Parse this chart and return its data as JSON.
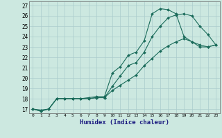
{
  "title": "",
  "xlabel": "Humidex (Indice chaleur)",
  "background_color": "#cce8e0",
  "grid_color": "#aacccc",
  "line_color": "#1a6b5a",
  "xlim": [
    -0.5,
    23.5
  ],
  "ylim": [
    16.6,
    27.4
  ],
  "xticks": [
    0,
    1,
    2,
    3,
    4,
    5,
    6,
    7,
    8,
    9,
    10,
    11,
    12,
    13,
    14,
    15,
    16,
    17,
    18,
    19,
    20,
    21,
    22,
    23
  ],
  "yticks": [
    17,
    18,
    19,
    20,
    21,
    22,
    23,
    24,
    25,
    26,
    27
  ],
  "series": [
    {
      "x": [
        0,
        1,
        2,
        3,
        4,
        5,
        6,
        7,
        8,
        9,
        10,
        11,
        12,
        13,
        14,
        15,
        16,
        17,
        18,
        19,
        20,
        21,
        22,
        23
      ],
      "y": [
        17,
        16.8,
        17,
        18,
        18,
        18,
        18,
        18.1,
        18.2,
        18.2,
        20.5,
        21.1,
        22.2,
        22.5,
        23.6,
        26.2,
        26.7,
        26.6,
        26.2,
        24.0,
        23.5,
        23.0,
        23.0,
        23.2
      ]
    },
    {
      "x": [
        0,
        1,
        2,
        3,
        4,
        5,
        6,
        7,
        8,
        9,
        10,
        11,
        12,
        13,
        14,
        15,
        16,
        17,
        18,
        19,
        20,
        21,
        22,
        23
      ],
      "y": [
        17,
        16.8,
        17.0,
        18,
        18,
        18,
        18,
        18,
        18.1,
        18.1,
        19.2,
        20.2,
        21.2,
        21.5,
        22.5,
        24.0,
        25.0,
        25.8,
        26.1,
        26.2,
        26.0,
        25.0,
        24.2,
        23.2
      ]
    },
    {
      "x": [
        0,
        1,
        2,
        3,
        4,
        5,
        6,
        7,
        8,
        9,
        10,
        11,
        12,
        13,
        14,
        15,
        16,
        17,
        18,
        19,
        20,
        21,
        22,
        23
      ],
      "y": [
        17,
        16.9,
        17,
        18,
        18,
        18,
        18,
        18,
        18.1,
        18.1,
        18.8,
        19.3,
        19.8,
        20.3,
        21.2,
        21.9,
        22.6,
        23.1,
        23.5,
        23.8,
        23.5,
        23.2,
        23.0,
        23.2
      ]
    }
  ]
}
